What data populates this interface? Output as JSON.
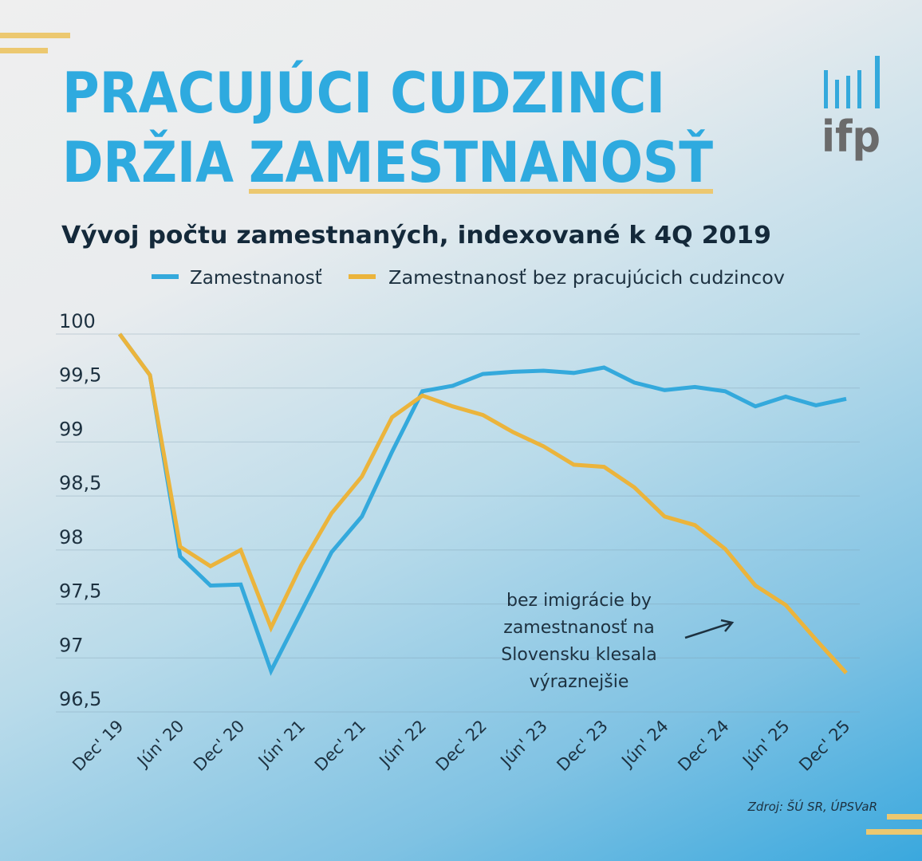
{
  "header": {
    "title_line1": "PRACUJÚCI CUDZINCI",
    "title_line2_a": "DRŽIA",
    "title_line2_b": "ZAMESTNANOSŤ",
    "logo_text": "ifp"
  },
  "colors": {
    "title": "#2eaadf",
    "accent": "#ecbd4a",
    "blue_series": "#34a9dc",
    "orange_series": "#ebb43c",
    "logo_gray": "#6b6b6b"
  },
  "chart_data": {
    "type": "line",
    "title": "Vývoj počtu zamestnaných, indexované k 4Q 2019",
    "legend_position": "top",
    "grid": true,
    "ylim": [
      96.5,
      100
    ],
    "y_ticks": [
      "100",
      "99,5",
      "99",
      "98,5",
      "98",
      "97,5",
      "97",
      "96,5"
    ],
    "y_tick_values": [
      100,
      99.5,
      99,
      98.5,
      98,
      97.5,
      97,
      96.5
    ],
    "x_tick_labels": [
      "Dec' 19",
      "Jún' 20",
      "Dec' 20",
      "Jún' 21",
      "Dec' 21",
      "Jún' 22",
      "Dec' 22",
      "Jún' 23",
      "Dec' 23",
      "Jún' 24",
      "Dec' 24",
      "Jún' 25",
      "Dec' 25"
    ],
    "x": [
      "Q4 2019",
      "Q1 2020",
      "Q2 2020",
      "Q3 2020",
      "Q4 2020",
      "Q1 2021",
      "Q2 2021",
      "Q3 2021",
      "Q4 2021",
      "Q1 2022",
      "Q2 2022",
      "Q3 2022",
      "Q4 2022",
      "Q1 2023",
      "Q2 2023",
      "Q3 2023",
      "Q4 2023",
      "Q1 2024",
      "Q2 2024",
      "Q3 2024",
      "Q4 2024",
      "Q1 2025",
      "Q2 2025",
      "Q3 2025",
      "Q4 2025"
    ],
    "series": [
      {
        "name": "Zamestnanosť",
        "color": "#34a9dc",
        "values": [
          100,
          99.62,
          97.94,
          97.67,
          97.68,
          96.88,
          97.43,
          97.98,
          98.31,
          98.91,
          99.47,
          99.52,
          99.63,
          99.65,
          99.66,
          99.64,
          99.69,
          99.55,
          99.48,
          99.51,
          99.47,
          99.33,
          99.42,
          99.34,
          99.4
        ]
      },
      {
        "name": "Zamestnanosť bez pracujúcich cudzincov",
        "color": "#ebb43c",
        "values": [
          100,
          99.62,
          98.03,
          97.85,
          98.0,
          97.28,
          97.86,
          98.34,
          98.68,
          99.23,
          99.43,
          99.33,
          99.25,
          99.09,
          98.96,
          98.79,
          98.77,
          98.58,
          98.31,
          98.23,
          98.01,
          97.67,
          97.49,
          97.17,
          96.86
        ]
      }
    ],
    "annotation": [
      "bez imigrácie by",
      "zamestnanosť na",
      "Slovensku klesala",
      "výraznejšie"
    ]
  },
  "source": "Zdroj: ŠÚ SR, ÚPSVaR"
}
